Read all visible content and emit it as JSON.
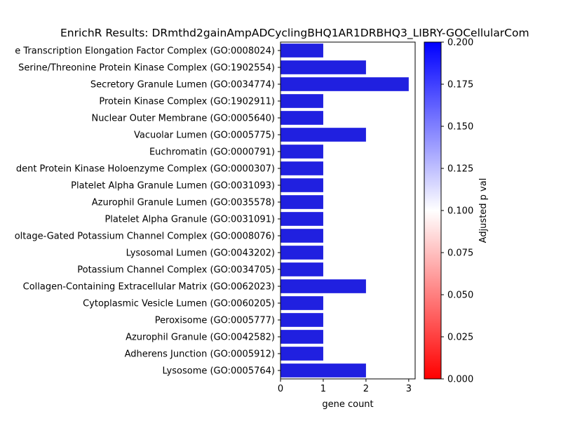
{
  "chart_data": {
    "type": "bar",
    "orientation": "horizontal",
    "title": "EnrichR Results: DRmthd2gainAmpADCyclingBHQ1AR1DRBHQ3_LIBRY-GOCellularCom",
    "xlabel": "gene count",
    "ylabel": "",
    "xlim": [
      0,
      3.15
    ],
    "x_ticks": [
      "0",
      "1",
      "2",
      "3"
    ],
    "categories": [
      "e Transcription Elongation Factor Complex (GO:0008024)",
      "Serine/Threonine Protein Kinase Complex (GO:1902554)",
      "Secretory Granule Lumen (GO:0034774)",
      "Protein Kinase Complex (GO:1902911)",
      "Nuclear Outer Membrane (GO:0005640)",
      "Vacuolar Lumen (GO:0005775)",
      "Euchromatin (GO:0000791)",
      "dent Protein Kinase Holoenzyme Complex (GO:0000307)",
      "Platelet Alpha Granule Lumen (GO:0031093)",
      "Azurophil Granule Lumen (GO:0035578)",
      "Platelet Alpha Granule (GO:0031091)",
      "oltage-Gated Potassium Channel Complex (GO:0008076)",
      "Lysosomal Lumen (GO:0043202)",
      "Potassium Channel Complex (GO:0034705)",
      "Collagen-Containing Extracellular Matrix (GO:0062023)",
      "Cytoplasmic Vesicle Lumen (GO:0060205)",
      "Peroxisome (GO:0005777)",
      "Azurophil Granule (GO:0042582)",
      "Adherens Junction (GO:0005912)",
      "Lysosome (GO:0005764)"
    ],
    "values": [
      1,
      2,
      3,
      1,
      1,
      2,
      1,
      1,
      1,
      1,
      1,
      1,
      1,
      1,
      2,
      1,
      1,
      1,
      1,
      2
    ],
    "bar_color": "#2020e0",
    "colorbar": {
      "label": "Adjusted p val",
      "range": [
        0,
        0.2
      ],
      "ticks": [
        "0.000",
        "0.025",
        "0.050",
        "0.075",
        "0.100",
        "0.125",
        "0.150",
        "0.175",
        "0.200"
      ],
      "colormap": [
        "#ff0000",
        "#ffffff",
        "#0000ff"
      ]
    },
    "grid": false,
    "legend": "none"
  }
}
